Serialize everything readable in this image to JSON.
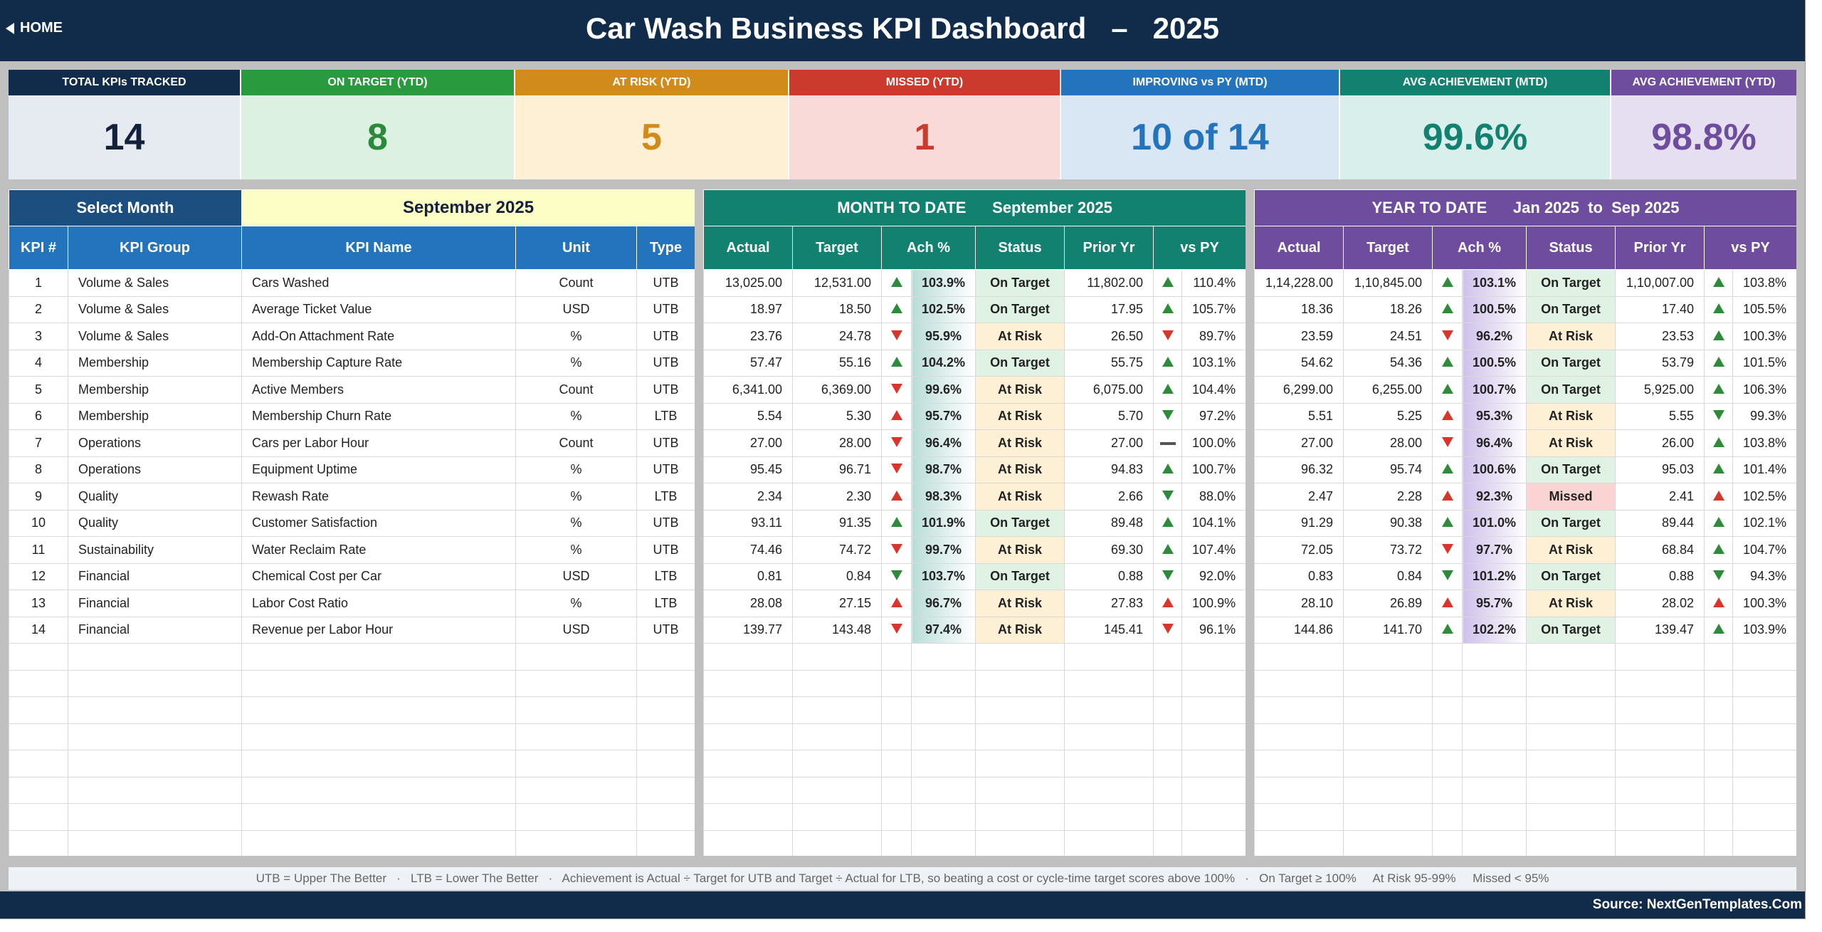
{
  "header": {
    "home_label": "HOME",
    "title": "Car Wash Business KPI Dashboard   –   2025",
    "bg_color": "#112b4a"
  },
  "cards": [
    {
      "label": "TOTAL KPIs TRACKED",
      "value": "14",
      "head_color": "#112b4a",
      "body_color": "#e6ebf2",
      "value_color": "#14213d"
    },
    {
      "label": "ON TARGET (YTD)",
      "value": "8",
      "head_color": "#2a9a3f",
      "body_color": "#dcf1e1",
      "value_color": "#2a8a3a"
    },
    {
      "label": "AT RISK (YTD)",
      "value": "5",
      "head_color": "#d08b1a",
      "body_color": "#fdf0d4",
      "value_color": "#d08b1a"
    },
    {
      "label": "MISSED (YTD)",
      "value": "1",
      "head_color": "#cc3a2e",
      "body_color": "#fadad8",
      "value_color": "#cc3a2e"
    },
    {
      "label": "IMPROVING vs PY (MTD)",
      "value": "10 of 14",
      "head_color": "#2474bd",
      "body_color": "#d9e6f3",
      "value_color": "#2474bd"
    },
    {
      "label": "AVG ACHIEVEMENT (MTD)",
      "value": "99.6%",
      "head_color": "#138170",
      "body_color": "#d8efec",
      "value_color": "#138170"
    },
    {
      "label": "AVG ACHIEVEMENT (YTD)",
      "value": "98.8%",
      "head_color": "#6e4d9e",
      "body_color": "#e6dff1",
      "value_color": "#6e4d9e"
    }
  ],
  "left_panel": {
    "select_label": "Select Month",
    "selected_month": "September 2025",
    "columns": [
      "KPI #",
      "KPI Group",
      "KPI Name",
      "Unit",
      "Type"
    ]
  },
  "mtd_panel": {
    "banner": "MONTH TO DATE      September 2025",
    "columns": [
      "Actual",
      "Target",
      "Ach %",
      "Status",
      "Prior Yr",
      "vs PY"
    ]
  },
  "ytd_panel": {
    "banner": "YEAR TO DATE      Jan 2025  to  Sep 2025",
    "columns": [
      "Actual",
      "Target",
      "Ach %",
      "Status",
      "Prior Yr",
      "vs PY"
    ]
  },
  "rows": [
    {
      "num": "1",
      "group": "Volume & Sales",
      "name": "Cars Washed",
      "unit": "Count",
      "type": "UTB",
      "mtd": {
        "actual": "13,025.00",
        "target": "12,531.00",
        "ach_dir": "up-green",
        "ach": "103.9%",
        "status": "On Target",
        "prior": "11,802.00",
        "py_dir": "up-green",
        "vs_py": "110.4%"
      },
      "ytd": {
        "actual": "1,14,228.00",
        "target": "1,10,845.00",
        "ach_dir": "up-green",
        "ach": "103.1%",
        "status": "On Target",
        "prior": "1,10,007.00",
        "py_dir": "up-green",
        "vs_py": "103.8%"
      }
    },
    {
      "num": "2",
      "group": "Volume & Sales",
      "name": "Average Ticket Value",
      "unit": "USD",
      "type": "UTB",
      "mtd": {
        "actual": "18.97",
        "target": "18.50",
        "ach_dir": "up-green",
        "ach": "102.5%",
        "status": "On Target",
        "prior": "17.95",
        "py_dir": "up-green",
        "vs_py": "105.7%"
      },
      "ytd": {
        "actual": "18.36",
        "target": "18.26",
        "ach_dir": "up-green",
        "ach": "100.5%",
        "status": "On Target",
        "prior": "17.40",
        "py_dir": "up-green",
        "vs_py": "105.5%"
      }
    },
    {
      "num": "3",
      "group": "Volume & Sales",
      "name": "Add-On Attachment Rate",
      "unit": "%",
      "type": "UTB",
      "mtd": {
        "actual": "23.76",
        "target": "24.78",
        "ach_dir": "down-red",
        "ach": "95.9%",
        "status": "At Risk",
        "prior": "26.50",
        "py_dir": "down-red",
        "vs_py": "89.7%"
      },
      "ytd": {
        "actual": "23.59",
        "target": "24.51",
        "ach_dir": "down-red",
        "ach": "96.2%",
        "status": "At Risk",
        "prior": "23.53",
        "py_dir": "up-green",
        "vs_py": "100.3%"
      }
    },
    {
      "num": "4",
      "group": "Membership",
      "name": "Membership Capture Rate",
      "unit": "%",
      "type": "UTB",
      "mtd": {
        "actual": "57.47",
        "target": "55.16",
        "ach_dir": "up-green",
        "ach": "104.2%",
        "status": "On Target",
        "prior": "55.75",
        "py_dir": "up-green",
        "vs_py": "103.1%"
      },
      "ytd": {
        "actual": "54.62",
        "target": "54.36",
        "ach_dir": "up-green",
        "ach": "100.5%",
        "status": "On Target",
        "prior": "53.79",
        "py_dir": "up-green",
        "vs_py": "101.5%"
      }
    },
    {
      "num": "5",
      "group": "Membership",
      "name": "Active Members",
      "unit": "Count",
      "type": "UTB",
      "mtd": {
        "actual": "6,341.00",
        "target": "6,369.00",
        "ach_dir": "down-red",
        "ach": "99.6%",
        "status": "At Risk",
        "prior": "6,075.00",
        "py_dir": "up-green",
        "vs_py": "104.4%"
      },
      "ytd": {
        "actual": "6,299.00",
        "target": "6,255.00",
        "ach_dir": "up-green",
        "ach": "100.7%",
        "status": "On Target",
        "prior": "5,925.00",
        "py_dir": "up-green",
        "vs_py": "106.3%"
      }
    },
    {
      "num": "6",
      "group": "Membership",
      "name": "Membership Churn Rate",
      "unit": "%",
      "type": "LTB",
      "mtd": {
        "actual": "5.54",
        "target": "5.30",
        "ach_dir": "up-red",
        "ach": "95.7%",
        "status": "At Risk",
        "prior": "5.70",
        "py_dir": "down-green",
        "vs_py": "97.2%"
      },
      "ytd": {
        "actual": "5.51",
        "target": "5.25",
        "ach_dir": "up-red",
        "ach": "95.3%",
        "status": "At Risk",
        "prior": "5.55",
        "py_dir": "down-green",
        "vs_py": "99.3%"
      }
    },
    {
      "num": "7",
      "group": "Operations",
      "name": "Cars per Labor Hour",
      "unit": "Count",
      "type": "UTB",
      "mtd": {
        "actual": "27.00",
        "target": "28.00",
        "ach_dir": "down-red",
        "ach": "96.4%",
        "status": "At Risk",
        "prior": "27.00",
        "py_dir": "flat",
        "vs_py": "100.0%"
      },
      "ytd": {
        "actual": "27.00",
        "target": "28.00",
        "ach_dir": "down-red",
        "ach": "96.4%",
        "status": "At Risk",
        "prior": "26.00",
        "py_dir": "up-green",
        "vs_py": "103.8%"
      }
    },
    {
      "num": "8",
      "group": "Operations",
      "name": "Equipment Uptime",
      "unit": "%",
      "type": "UTB",
      "mtd": {
        "actual": "95.45",
        "target": "96.71",
        "ach_dir": "down-red",
        "ach": "98.7%",
        "status": "At Risk",
        "prior": "94.83",
        "py_dir": "up-green",
        "vs_py": "100.7%"
      },
      "ytd": {
        "actual": "96.32",
        "target": "95.74",
        "ach_dir": "up-green",
        "ach": "100.6%",
        "status": "On Target",
        "prior": "95.03",
        "py_dir": "up-green",
        "vs_py": "101.4%"
      }
    },
    {
      "num": "9",
      "group": "Quality",
      "name": "Rewash Rate",
      "unit": "%",
      "type": "LTB",
      "mtd": {
        "actual": "2.34",
        "target": "2.30",
        "ach_dir": "up-red",
        "ach": "98.3%",
        "status": "At Risk",
        "prior": "2.66",
        "py_dir": "down-green",
        "vs_py": "88.0%"
      },
      "ytd": {
        "actual": "2.47",
        "target": "2.28",
        "ach_dir": "up-red",
        "ach": "92.3%",
        "status": "Missed",
        "prior": "2.41",
        "py_dir": "up-red",
        "vs_py": "102.5%"
      }
    },
    {
      "num": "10",
      "group": "Quality",
      "name": "Customer Satisfaction",
      "unit": "%",
      "type": "UTB",
      "mtd": {
        "actual": "93.11",
        "target": "91.35",
        "ach_dir": "up-green",
        "ach": "101.9%",
        "status": "On Target",
        "prior": "89.48",
        "py_dir": "up-green",
        "vs_py": "104.1%"
      },
      "ytd": {
        "actual": "91.29",
        "target": "90.38",
        "ach_dir": "up-green",
        "ach": "101.0%",
        "status": "On Target",
        "prior": "89.44",
        "py_dir": "up-green",
        "vs_py": "102.1%"
      }
    },
    {
      "num": "11",
      "group": "Sustainability",
      "name": "Water Reclaim Rate",
      "unit": "%",
      "type": "UTB",
      "mtd": {
        "actual": "74.46",
        "target": "74.72",
        "ach_dir": "down-red",
        "ach": "99.7%",
        "status": "At Risk",
        "prior": "69.30",
        "py_dir": "up-green",
        "vs_py": "107.4%"
      },
      "ytd": {
        "actual": "72.05",
        "target": "73.72",
        "ach_dir": "down-red",
        "ach": "97.7%",
        "status": "At Risk",
        "prior": "68.84",
        "py_dir": "up-green",
        "vs_py": "104.7%"
      }
    },
    {
      "num": "12",
      "group": "Financial",
      "name": "Chemical Cost per Car",
      "unit": "USD",
      "type": "LTB",
      "mtd": {
        "actual": "0.81",
        "target": "0.84",
        "ach_dir": "down-green",
        "ach": "103.7%",
        "status": "On Target",
        "prior": "0.88",
        "py_dir": "down-green",
        "vs_py": "92.0%"
      },
      "ytd": {
        "actual": "0.83",
        "target": "0.84",
        "ach_dir": "down-green",
        "ach": "101.2%",
        "status": "On Target",
        "prior": "0.88",
        "py_dir": "down-green",
        "vs_py": "94.3%"
      }
    },
    {
      "num": "13",
      "group": "Financial",
      "name": "Labor Cost Ratio",
      "unit": "%",
      "type": "LTB",
      "mtd": {
        "actual": "28.08",
        "target": "27.15",
        "ach_dir": "up-red",
        "ach": "96.7%",
        "status": "At Risk",
        "prior": "27.83",
        "py_dir": "up-red",
        "vs_py": "100.9%"
      },
      "ytd": {
        "actual": "28.10",
        "target": "26.89",
        "ach_dir": "up-red",
        "ach": "95.7%",
        "status": "At Risk",
        "prior": "28.02",
        "py_dir": "up-red",
        "vs_py": "100.3%"
      }
    },
    {
      "num": "14",
      "group": "Financial",
      "name": "Revenue per Labor Hour",
      "unit": "USD",
      "type": "UTB",
      "mtd": {
        "actual": "139.77",
        "target": "143.48",
        "ach_dir": "down-red",
        "ach": "97.4%",
        "status": "At Risk",
        "prior": "145.41",
        "py_dir": "down-red",
        "vs_py": "96.1%"
      },
      "ytd": {
        "actual": "144.86",
        "target": "141.70",
        "ach_dir": "up-green",
        "ach": "102.2%",
        "status": "On Target",
        "prior": "139.47",
        "py_dir": "up-green",
        "vs_py": "103.9%"
      }
    }
  ],
  "footer": {
    "legend": "UTB = Upper The Better   ·   LTB = Lower The Better   ·   Achievement is Actual ÷ Target for UTB and Target ÷ Actual for LTB, so beating a cost or cycle-time target scores above 100%   ·   On Target ≥ 100%     At Risk 95-99%     Missed < 95%",
    "source": "Source: NextGenTemplates.Com"
  },
  "colors": {
    "left_header": "#2474bd",
    "left_banner": "#1c4e80",
    "mtd_header": "#138170",
    "ytd_header": "#6e4d9e"
  }
}
